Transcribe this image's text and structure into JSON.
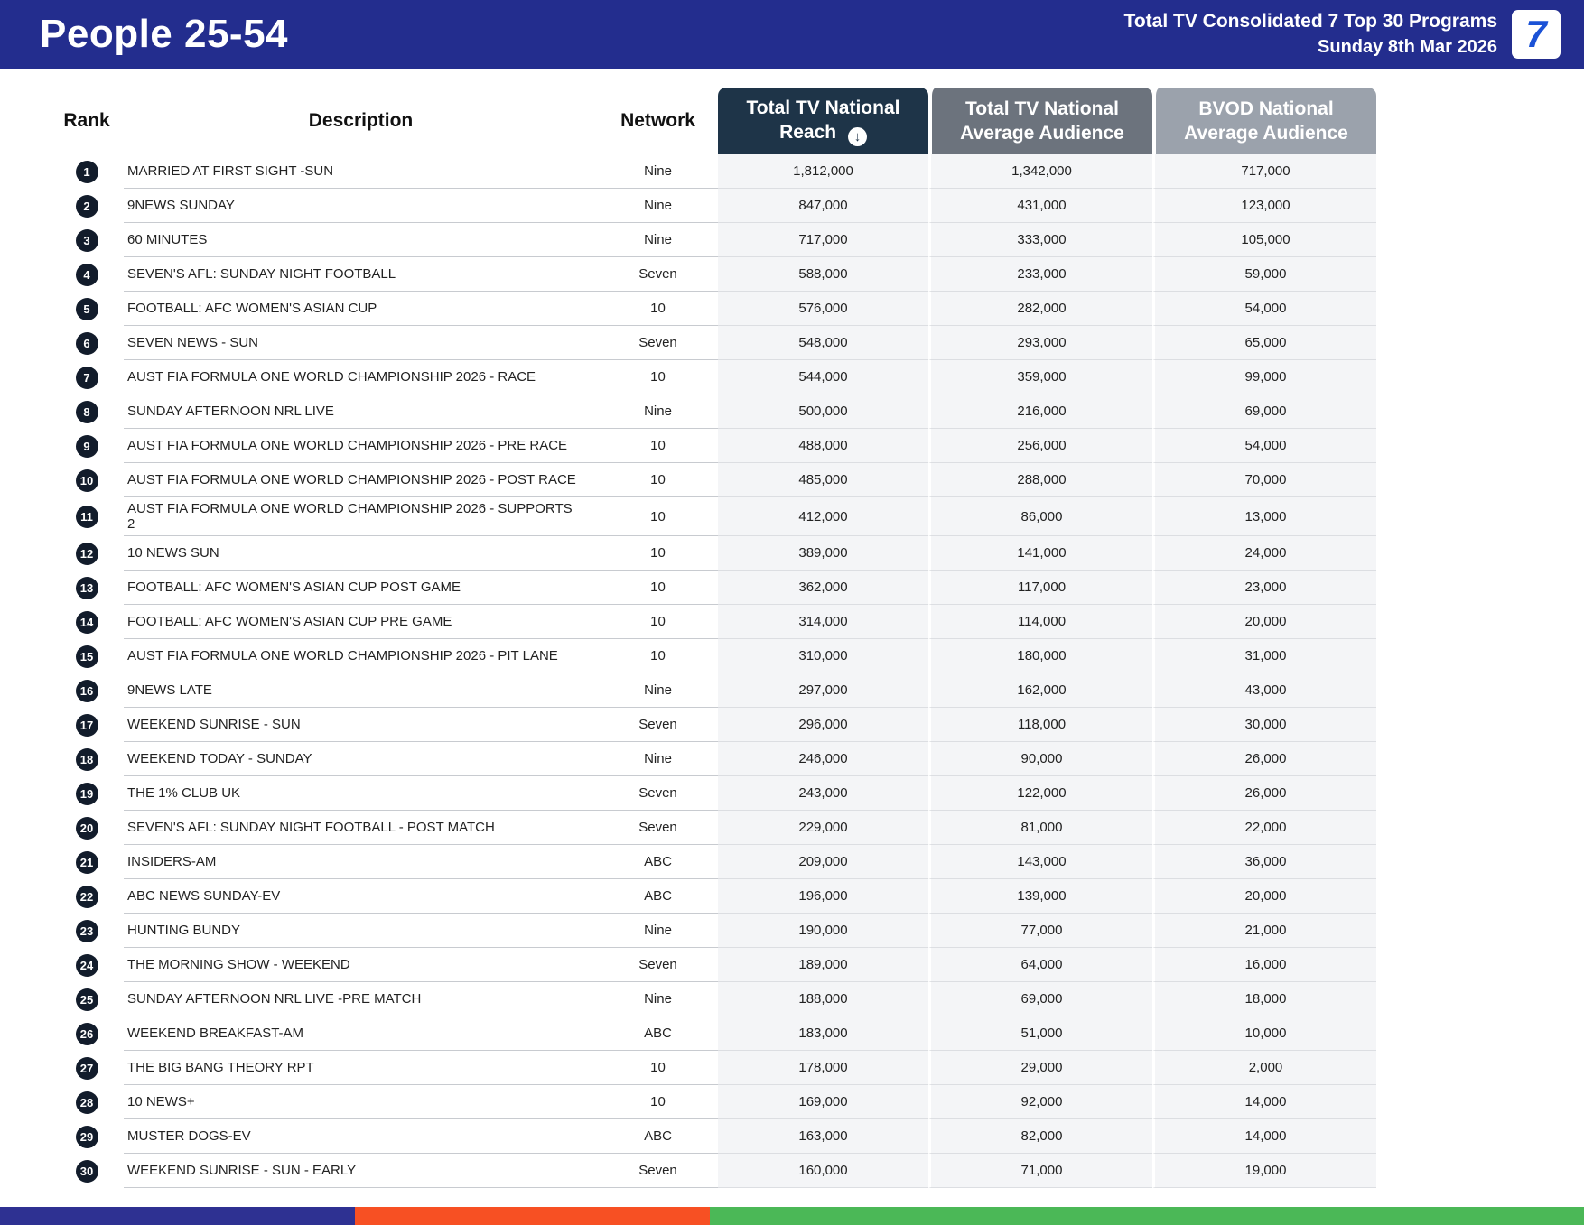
{
  "header": {
    "title": "People 25-54",
    "report_title": "Total TV Consolidated 7 Top 30 Programs",
    "report_date": "Sunday 8th Mar 2026",
    "logo_text": "7"
  },
  "table": {
    "columns": {
      "rank": "Rank",
      "description": "Description",
      "network": "Network",
      "reach": "Total TV National Reach",
      "reach_sort_icon": "↓",
      "avg": "Total TV National Average Audience",
      "bvod": "BVOD National Average Audience"
    },
    "rows": [
      {
        "rank": "1",
        "description": "MARRIED AT FIRST SIGHT -SUN",
        "network": "Nine",
        "reach": "1,812,000",
        "avg": "1,342,000",
        "bvod": "717,000"
      },
      {
        "rank": "2",
        "description": "9NEWS SUNDAY",
        "network": "Nine",
        "reach": "847,000",
        "avg": "431,000",
        "bvod": "123,000"
      },
      {
        "rank": "3",
        "description": "60 MINUTES",
        "network": "Nine",
        "reach": "717,000",
        "avg": "333,000",
        "bvod": "105,000"
      },
      {
        "rank": "4",
        "description": "SEVEN'S AFL: SUNDAY NIGHT FOOTBALL",
        "network": "Seven",
        "reach": "588,000",
        "avg": "233,000",
        "bvod": "59,000"
      },
      {
        "rank": "5",
        "description": "FOOTBALL: AFC WOMEN'S ASIAN CUP",
        "network": "10",
        "reach": "576,000",
        "avg": "282,000",
        "bvod": "54,000"
      },
      {
        "rank": "6",
        "description": "SEVEN NEWS - SUN",
        "network": "Seven",
        "reach": "548,000",
        "avg": "293,000",
        "bvod": "65,000"
      },
      {
        "rank": "7",
        "description": "AUST FIA FORMULA ONE WORLD CHAMPIONSHIP 2026 - RACE",
        "network": "10",
        "reach": "544,000",
        "avg": "359,000",
        "bvod": "99,000"
      },
      {
        "rank": "8",
        "description": "SUNDAY AFTERNOON NRL LIVE",
        "network": "Nine",
        "reach": "500,000",
        "avg": "216,000",
        "bvod": "69,000"
      },
      {
        "rank": "9",
        "description": "AUST FIA FORMULA ONE WORLD CHAMPIONSHIP 2026 - PRE RACE",
        "network": "10",
        "reach": "488,000",
        "avg": "256,000",
        "bvod": "54,000"
      },
      {
        "rank": "10",
        "description": "AUST FIA FORMULA ONE WORLD CHAMPIONSHIP 2026 - POST RACE",
        "network": "10",
        "reach": "485,000",
        "avg": "288,000",
        "bvod": "70,000"
      },
      {
        "rank": "11",
        "description": "AUST FIA FORMULA ONE WORLD CHAMPIONSHIP 2026 - SUPPORTS 2",
        "network": "10",
        "reach": "412,000",
        "avg": "86,000",
        "bvod": "13,000"
      },
      {
        "rank": "12",
        "description": "10 NEWS SUN",
        "network": "10",
        "reach": "389,000",
        "avg": "141,000",
        "bvod": "24,000"
      },
      {
        "rank": "13",
        "description": "FOOTBALL: AFC WOMEN'S ASIAN CUP POST GAME",
        "network": "10",
        "reach": "362,000",
        "avg": "117,000",
        "bvod": "23,000"
      },
      {
        "rank": "14",
        "description": "FOOTBALL: AFC WOMEN'S ASIAN CUP PRE GAME",
        "network": "10",
        "reach": "314,000",
        "avg": "114,000",
        "bvod": "20,000"
      },
      {
        "rank": "15",
        "description": "AUST FIA FORMULA ONE WORLD CHAMPIONSHIP 2026 - PIT LANE",
        "network": "10",
        "reach": "310,000",
        "avg": "180,000",
        "bvod": "31,000"
      },
      {
        "rank": "16",
        "description": "9NEWS LATE",
        "network": "Nine",
        "reach": "297,000",
        "avg": "162,000",
        "bvod": "43,000"
      },
      {
        "rank": "17",
        "description": "WEEKEND SUNRISE - SUN",
        "network": "Seven",
        "reach": "296,000",
        "avg": "118,000",
        "bvod": "30,000"
      },
      {
        "rank": "18",
        "description": "WEEKEND TODAY - SUNDAY",
        "network": "Nine",
        "reach": "246,000",
        "avg": "90,000",
        "bvod": "26,000"
      },
      {
        "rank": "19",
        "description": "THE 1% CLUB UK",
        "network": "Seven",
        "reach": "243,000",
        "avg": "122,000",
        "bvod": "26,000"
      },
      {
        "rank": "20",
        "description": "SEVEN'S AFL: SUNDAY NIGHT FOOTBALL - POST MATCH",
        "network": "Seven",
        "reach": "229,000",
        "avg": "81,000",
        "bvod": "22,000"
      },
      {
        "rank": "21",
        "description": "INSIDERS-AM",
        "network": "ABC",
        "reach": "209,000",
        "avg": "143,000",
        "bvod": "36,000"
      },
      {
        "rank": "22",
        "description": "ABC NEWS SUNDAY-EV",
        "network": "ABC",
        "reach": "196,000",
        "avg": "139,000",
        "bvod": "20,000"
      },
      {
        "rank": "23",
        "description": "HUNTING BUNDY",
        "network": "Nine",
        "reach": "190,000",
        "avg": "77,000",
        "bvod": "21,000"
      },
      {
        "rank": "24",
        "description": "THE MORNING SHOW - WEEKEND",
        "network": "Seven",
        "reach": "189,000",
        "avg": "64,000",
        "bvod": "16,000"
      },
      {
        "rank": "25",
        "description": "SUNDAY AFTERNOON NRL LIVE -PRE MATCH",
        "network": "Nine",
        "reach": "188,000",
        "avg": "69,000",
        "bvod": "18,000"
      },
      {
        "rank": "26",
        "description": "WEEKEND BREAKFAST-AM",
        "network": "ABC",
        "reach": "183,000",
        "avg": "51,000",
        "bvod": "10,000"
      },
      {
        "rank": "27",
        "description": "THE BIG BANG THEORY RPT",
        "network": "10",
        "reach": "178,000",
        "avg": "29,000",
        "bvod": "2,000"
      },
      {
        "rank": "28",
        "description": "10 NEWS+",
        "network": "10",
        "reach": "169,000",
        "avg": "92,000",
        "bvod": "14,000"
      },
      {
        "rank": "29",
        "description": "MUSTER DOGS-EV",
        "network": "ABC",
        "reach": "163,000",
        "avg": "82,000",
        "bvod": "14,000"
      },
      {
        "rank": "30",
        "description": "WEEKEND SUNRISE - SUN - EARLY",
        "network": "Seven",
        "reach": "160,000",
        "avg": "71,000",
        "bvod": "19,000"
      }
    ]
  },
  "footer": {
    "segments": [
      {
        "name": "navy",
        "color": "#2e3192",
        "width": "22.4%"
      },
      {
        "name": "orange",
        "color": "#f75023",
        "width": "22.4%"
      },
      {
        "name": "green",
        "color": "#4bb857",
        "width": "55.2%"
      }
    ]
  },
  "colors": {
    "banner": "#232d8e",
    "reach_header": "#1e3448",
    "avg_header": "#6c737d",
    "bvod_header": "#9ba2ac",
    "rank_badge": "#121c2b",
    "logo_blue": "#1b52d6"
  }
}
